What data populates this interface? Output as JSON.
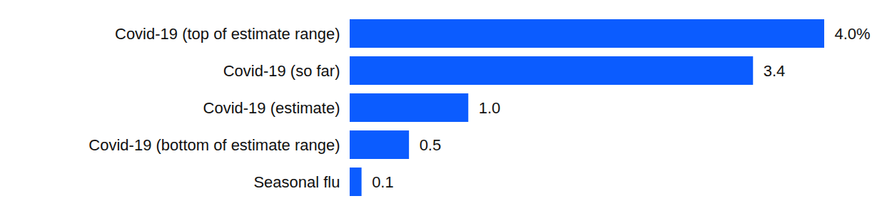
{
  "chart_data": {
    "type": "bar",
    "orientation": "horizontal",
    "categories": [
      "Covid-19 (top of estimate range)",
      "Covid-19 (so far)",
      "Covid-19 (estimate)",
      "Covid-19 (bottom of estimate range)",
      "Seasonal flu"
    ],
    "values": [
      4.0,
      3.4,
      1.0,
      0.5,
      0.1
    ],
    "value_labels": [
      "4.0%",
      "3.4",
      "1.0",
      "0.5",
      "0.1"
    ],
    "color": "#0b5cff",
    "data_labels": true,
    "tick_labels": "y",
    "grid": false
  }
}
